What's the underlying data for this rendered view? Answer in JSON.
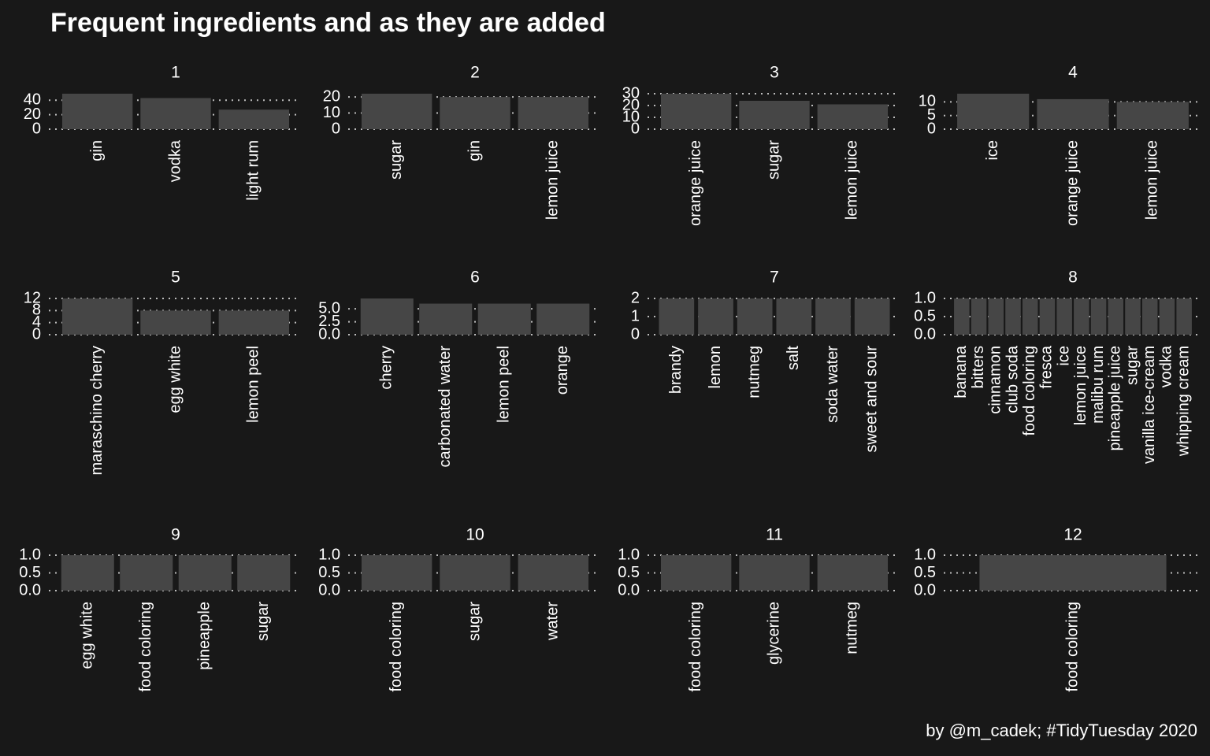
{
  "title": "Frequent ingredients and as they are added",
  "caption": "by @m_cadek; #TidyTuesday 2020",
  "colors": {
    "background": "#181818",
    "bar": "#464646",
    "grid": "#bdbdbd",
    "text": "#ffffff"
  },
  "chart_data": [
    {
      "type": "bar",
      "panel": "1",
      "categories": [
        "gin",
        "vodka",
        "light rum"
      ],
      "values": [
        49,
        43,
        27
      ],
      "ylim": [
        0,
        49
      ],
      "yticks": [
        "0",
        "20",
        "40"
      ],
      "ytick_values": [
        0,
        20,
        40
      ]
    },
    {
      "type": "bar",
      "panel": "2",
      "categories": [
        "sugar",
        "gin",
        "lemon juice"
      ],
      "values": [
        22,
        20,
        20
      ],
      "ylim": [
        0,
        22
      ],
      "yticks": [
        "0",
        "10",
        "20"
      ],
      "ytick_values": [
        0,
        10,
        20
      ]
    },
    {
      "type": "bar",
      "panel": "3",
      "categories": [
        "orange juice",
        "sugar",
        "lemon juice"
      ],
      "values": [
        30,
        24,
        21
      ],
      "ylim": [
        0,
        30
      ],
      "yticks": [
        "0",
        "10",
        "20",
        "30"
      ],
      "ytick_values": [
        0,
        10,
        20,
        30
      ]
    },
    {
      "type": "bar",
      "panel": "4",
      "categories": [
        "ice",
        "orange juice",
        "lemon juice"
      ],
      "values": [
        13,
        11,
        10
      ],
      "ylim": [
        0,
        13
      ],
      "yticks": [
        "0",
        "5",
        "10"
      ],
      "ytick_values": [
        0,
        5,
        10
      ]
    },
    {
      "type": "bar",
      "panel": "5",
      "categories": [
        "maraschino cherry",
        "egg white",
        "lemon peel"
      ],
      "values": [
        12,
        8,
        8
      ],
      "ylim": [
        0,
        12
      ],
      "yticks": [
        "0",
        "4",
        "8",
        "12"
      ],
      "ytick_values": [
        0,
        4,
        8,
        12
      ]
    },
    {
      "type": "bar",
      "panel": "6",
      "categories": [
        "cherry",
        "carbonated water",
        "lemon peel",
        "orange"
      ],
      "values": [
        7,
        6,
        6,
        6
      ],
      "ylim": [
        0,
        7
      ],
      "yticks": [
        "0.0",
        "2.5",
        "5.0"
      ],
      "ytick_values": [
        0,
        2.5,
        5
      ]
    },
    {
      "type": "bar",
      "panel": "7",
      "categories": [
        "brandy",
        "lemon",
        "nutmeg",
        "salt",
        "soda water",
        "sweet and sour"
      ],
      "values": [
        2,
        2,
        2,
        2,
        2,
        2
      ],
      "ylim": [
        0,
        2
      ],
      "yticks": [
        "0",
        "1",
        "2"
      ],
      "ytick_values": [
        0,
        1,
        2
      ]
    },
    {
      "type": "bar",
      "panel": "8",
      "categories": [
        "banana",
        "bitters",
        "cinnamon",
        "club soda",
        "food coloring",
        "fresca",
        "ice",
        "lemon juice",
        "malibu rum",
        "pineapple juice",
        "sugar",
        "vanilla ice-cream",
        "vodka",
        "whipping cream"
      ],
      "values": [
        1,
        1,
        1,
        1,
        1,
        1,
        1,
        1,
        1,
        1,
        1,
        1,
        1,
        1
      ],
      "ylim": [
        0,
        1
      ],
      "yticks": [
        "0.0",
        "0.5",
        "1.0"
      ],
      "ytick_values": [
        0,
        0.5,
        1
      ]
    },
    {
      "type": "bar",
      "panel": "9",
      "categories": [
        "egg white",
        "food coloring",
        "pineapple",
        "sugar"
      ],
      "values": [
        1,
        1,
        1,
        1
      ],
      "ylim": [
        0,
        1
      ],
      "yticks": [
        "0.0",
        "0.5",
        "1.0"
      ],
      "ytick_values": [
        0,
        0.5,
        1
      ]
    },
    {
      "type": "bar",
      "panel": "10",
      "categories": [
        "food coloring",
        "sugar",
        "water"
      ],
      "values": [
        1,
        1,
        1
      ],
      "ylim": [
        0,
        1
      ],
      "yticks": [
        "0.0",
        "0.5",
        "1.0"
      ],
      "ytick_values": [
        0,
        0.5,
        1
      ]
    },
    {
      "type": "bar",
      "panel": "11",
      "categories": [
        "food coloring",
        "glycerine",
        "nutmeg"
      ],
      "values": [
        1,
        1,
        1
      ],
      "ylim": [
        0,
        1
      ],
      "yticks": [
        "0.0",
        "0.5",
        "1.0"
      ],
      "ytick_values": [
        0,
        0.5,
        1
      ]
    },
    {
      "type": "bar",
      "panel": "12",
      "categories": [
        "food coloring"
      ],
      "values": [
        1
      ],
      "ylim": [
        0,
        1
      ],
      "yticks": [
        "0.0",
        "0.5",
        "1.0"
      ],
      "ytick_values": [
        0,
        0.5,
        1
      ]
    }
  ]
}
